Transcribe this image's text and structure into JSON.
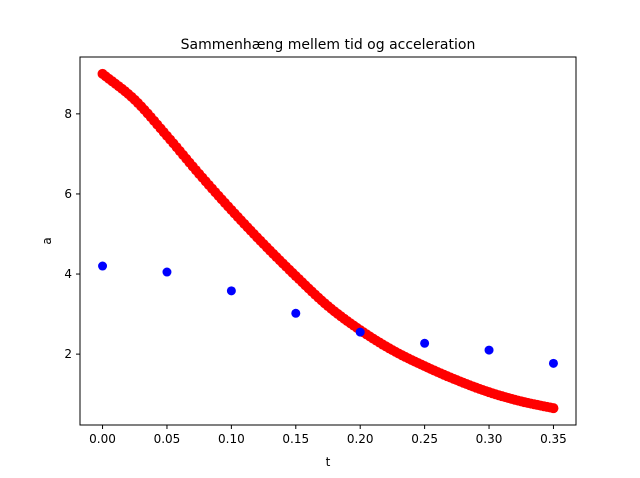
{
  "chart_data": {
    "type": "scatter",
    "title": "Sammenhæng mellem tid og acceleration",
    "xlabel": "t",
    "ylabel": "a",
    "xlim": [
      -0.0175,
      0.3675
    ],
    "ylim": [
      0.23,
      9.42
    ],
    "xticks": [
      0.0,
      0.05,
      0.1,
      0.15,
      0.2,
      0.25,
      0.3,
      0.35
    ],
    "xtick_labels": [
      "0.00",
      "0.05",
      "0.10",
      "0.15",
      "0.20",
      "0.25",
      "0.30",
      "0.35"
    ],
    "yticks": [
      2,
      4,
      6,
      8
    ],
    "ytick_labels": [
      "2",
      "4",
      "6",
      "8"
    ],
    "grid": false,
    "legend": "none",
    "series": [
      {
        "color": "#ff0000",
        "x": [
          0.0,
          0.025,
          0.05,
          0.075,
          0.1,
          0.125,
          0.15,
          0.175,
          0.2,
          0.225,
          0.25,
          0.275,
          0.3,
          0.325,
          0.35
        ],
        "y": [
          9.0,
          8.35,
          7.45,
          6.5,
          5.6,
          4.75,
          3.95,
          3.2,
          2.6,
          2.1,
          1.7,
          1.35,
          1.05,
          0.82,
          0.65
        ]
      },
      {
        "color": "#0000ff",
        "x": [
          0.0,
          0.05,
          0.1,
          0.15,
          0.2,
          0.25,
          0.3,
          0.35
        ],
        "y": [
          4.2,
          4.05,
          3.58,
          3.02,
          2.55,
          2.27,
          2.1,
          1.77
        ]
      }
    ]
  }
}
